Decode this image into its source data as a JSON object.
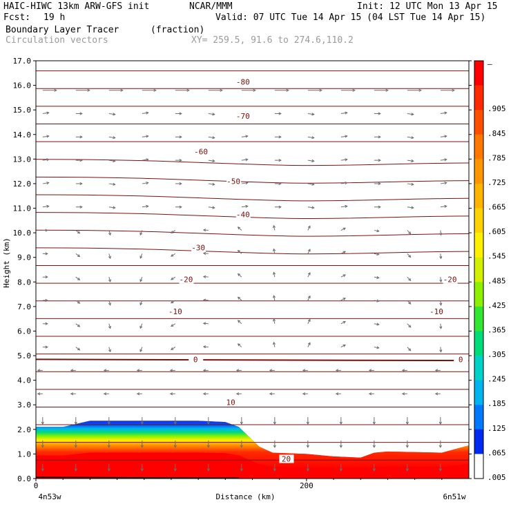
{
  "header": {
    "model_name": "HAIC-HIWC 13km ARW-GFS init",
    "org": "NCAR/MMM",
    "init": "Init: 12 UTC Mon 13 Apr 15",
    "fcst_label": "Fcst:",
    "fcst_value": "19 h",
    "valid": "Valid: 07 UTC Tue 14 Apr 15 (04 LST Tue 14 Apr 15)",
    "field_name": "Boundary Layer Tracer",
    "field_units": "(fraction)",
    "vector_label": "Circulation vectors",
    "xy_label": "XY= 259.5, 91.6 to 274.6,110.2"
  },
  "chart_data": {
    "type": "heatmap",
    "xlabel": "Distance (km)",
    "ylabel": "Height (km)",
    "xlim": [
      0,
      320
    ],
    "ylim": [
      0,
      17
    ],
    "x_ticks": [
      0,
      200
    ],
    "x_tick_labels": [
      "0",
      "200"
    ],
    "x_end_labels": {
      "left": "4n53w",
      "right": "6n51w"
    },
    "y_ticks": [
      0,
      1,
      2,
      3,
      4,
      5,
      6,
      7,
      8,
      9,
      10,
      11,
      12,
      13,
      14,
      15,
      16,
      17
    ],
    "y_tick_labels": [
      "0.0",
      "1.0",
      "2.0",
      "3.0",
      "4.0",
      "5.0",
      "6.0",
      "7.0",
      "8.0",
      "9.0",
      "10.0",
      "11.0",
      "12.0",
      "13.0",
      "14.0",
      "15.0",
      "16.0",
      "17.0"
    ],
    "tracer_top_profile": {
      "x": [
        0,
        20,
        40,
        80,
        120,
        140,
        150,
        165,
        175,
        200,
        220,
        240,
        250,
        260,
        300,
        310,
        320
      ],
      "top_km": [
        2.1,
        2.1,
        2.35,
        2.35,
        2.35,
        2.3,
        2.1,
        1.3,
        1.05,
        1.0,
        0.9,
        0.85,
        1.05,
        1.1,
        1.05,
        1.2,
        1.35
      ]
    },
    "colorbar": {
      "labels": [
        "–",
        ".905",
        ".845",
        ".785",
        ".725",
        ".665",
        ".605",
        ".545",
        ".485",
        ".425",
        ".365",
        ".305",
        ".245",
        ".185",
        ".125",
        ".065",
        ".005"
      ],
      "colors": [
        "#ff0000",
        "#ff2a00",
        "#ff5000",
        "#ff7800",
        "#ff9600",
        "#ffb400",
        "#ffd200",
        "#fff000",
        "#d2f000",
        "#8cf000",
        "#32e632",
        "#00dc78",
        "#00d2c8",
        "#00b4f0",
        "#0078ff",
        "#0028f0",
        "#ffffff"
      ]
    },
    "temperature_contours": {
      "levels": [
        -80,
        -70,
        -60,
        -50,
        -40,
        -30,
        -20,
        -10,
        0,
        10,
        20
      ],
      "labels": [
        {
          "text": "-80",
          "x": 153,
          "y": 16.15
        },
        {
          "text": "-70",
          "x": 153,
          "y": 14.75
        },
        {
          "text": "-60",
          "x": 122,
          "y": 13.3
        },
        {
          "text": "-50",
          "x": 146,
          "y": 12.1
        },
        {
          "text": "-40",
          "x": 153,
          "y": 10.75
        },
        {
          "text": "-30",
          "x": 120,
          "y": 9.4
        },
        {
          "text": "-20",
          "x": 111,
          "y": 8.1
        },
        {
          "text": "-20",
          "x": 306,
          "y": 8.1
        },
        {
          "text": "-10",
          "x": 103,
          "y": 6.8
        },
        {
          "text": "-10",
          "x": 296,
          "y": 6.8
        },
        {
          "text": "0",
          "x": 118,
          "y": 4.85
        },
        {
          "text": "0",
          "x": 314,
          "y": 4.85
        },
        {
          "text": "10",
          "x": 144,
          "y": 3.1
        },
        {
          "text": "20",
          "x": 185,
          "y": 0.8
        }
      ]
    }
  }
}
